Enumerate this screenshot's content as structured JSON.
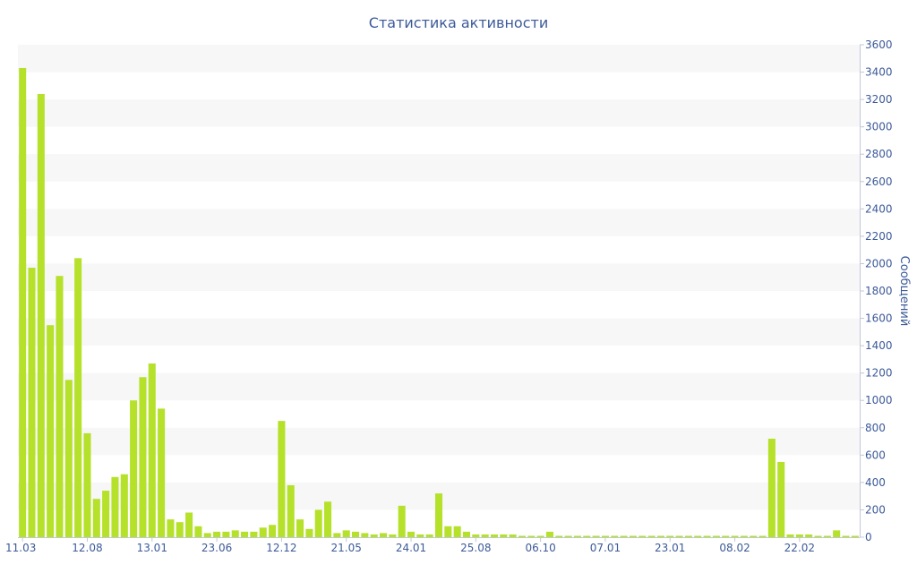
{
  "chart_data": {
    "type": "bar",
    "title": "Статистика активности",
    "xlabel": "",
    "ylabel": "Сообщений",
    "ylim": [
      0,
      3600
    ],
    "yticks": [
      0,
      200,
      400,
      600,
      800,
      1000,
      1200,
      1400,
      1600,
      1800,
      2000,
      2200,
      2400,
      2600,
      2800,
      3000,
      3200,
      3400,
      3600
    ],
    "y_axis_side": "right",
    "grid": "alternating horizontal bands",
    "x_tick_labels": [
      "11.03",
      "12.08",
      "13.01",
      "23.06",
      "12.12",
      "21.05",
      "24.01",
      "25.08",
      "06.10",
      "07.01",
      "23.01",
      "08.02",
      "22.02"
    ],
    "x_tick_bar_index": [
      0,
      7,
      14,
      21,
      28,
      35,
      42,
      49,
      56,
      63,
      70,
      77,
      84
    ],
    "colors": {
      "bar": "#b5e12b",
      "axis_text": "#3c5a99",
      "band": "#f7f7f7"
    },
    "values": [
      3430,
      1970,
      3240,
      1550,
      1910,
      1150,
      2040,
      760,
      280,
      340,
      440,
      460,
      1000,
      1170,
      1270,
      940,
      130,
      110,
      180,
      80,
      30,
      40,
      40,
      50,
      40,
      40,
      70,
      90,
      850,
      380,
      130,
      60,
      200,
      260,
      30,
      50,
      40,
      30,
      20,
      30,
      20,
      230,
      40,
      20,
      20,
      320,
      80,
      80,
      40,
      20,
      20,
      20,
      20,
      20,
      10,
      10,
      10,
      40,
      10,
      10,
      10,
      10,
      10,
      10,
      10,
      10,
      10,
      10,
      10,
      10,
      10,
      10,
      10,
      10,
      10,
      10,
      10,
      10,
      10,
      10,
      10,
      720,
      550,
      20,
      20,
      20,
      10,
      10,
      50,
      10,
      10
    ]
  }
}
